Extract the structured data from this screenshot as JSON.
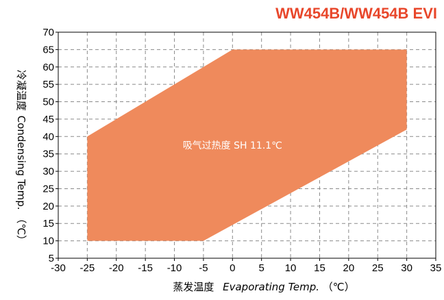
{
  "chart_data": {
    "type": "area",
    "title": "WW454B/WW454B EVI",
    "xlabel_cn": "蒸发温度",
    "xlabel_en": "Evaporating Temp.",
    "xlabel_unit": "（℃）",
    "ylabel_cn": "冷凝温度",
    "ylabel_en": "Condensing Temp.",
    "ylabel_unit": "（℃）",
    "xlim": [
      -30,
      35
    ],
    "ylim": [
      5,
      70
    ],
    "xticks": [
      -30,
      -25,
      -20,
      -15,
      -10,
      -5,
      0,
      5,
      10,
      15,
      20,
      25,
      30,
      35
    ],
    "yticks": [
      5,
      10,
      15,
      20,
      25,
      30,
      35,
      40,
      45,
      50,
      55,
      60,
      65,
      70
    ],
    "grid": true,
    "envelope": {
      "color": "#ef8a5c",
      "points": [
        {
          "x": -25,
          "y": 10
        },
        {
          "x": -5,
          "y": 10
        },
        {
          "x": 30,
          "y": 42
        },
        {
          "x": 30,
          "y": 65
        },
        {
          "x": 0,
          "y": 65
        },
        {
          "x": -25,
          "y": 40
        }
      ]
    },
    "annotation": {
      "text": "吸气过热度 SH 11.1℃",
      "x": 0,
      "y": 36.5
    }
  }
}
